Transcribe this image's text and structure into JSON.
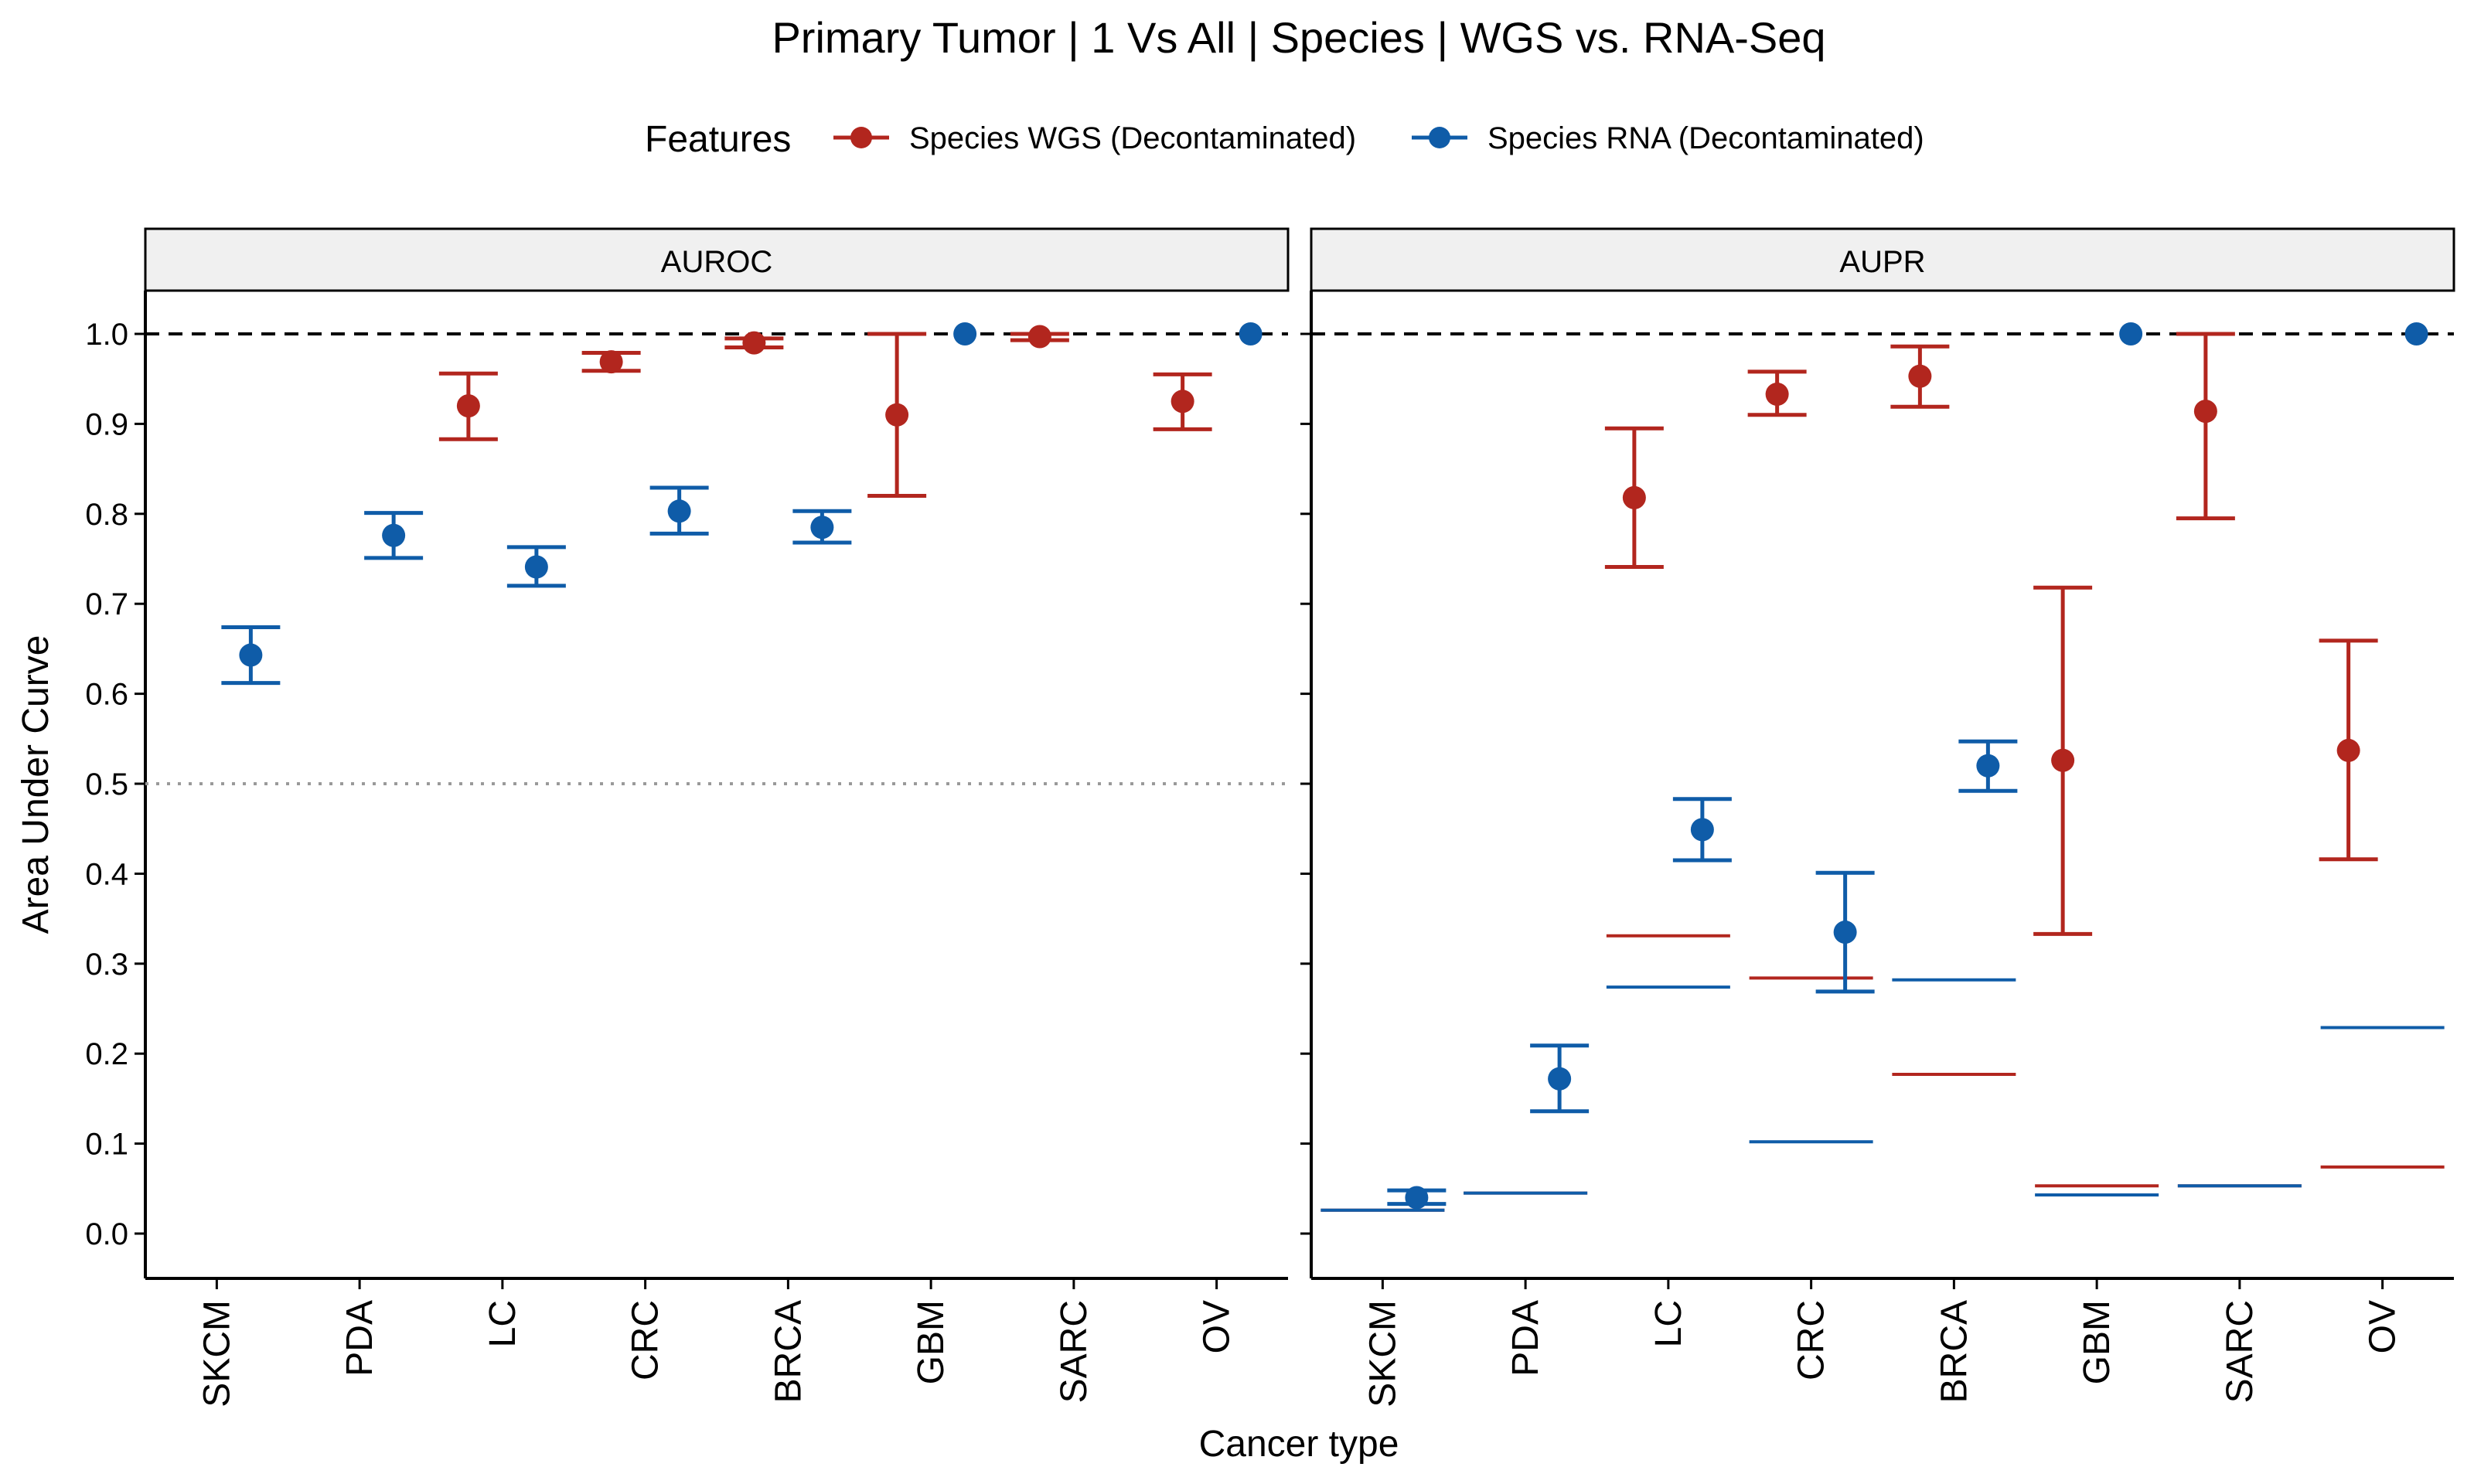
{
  "chart_data": {
    "type": "scatter",
    "title": "Primary Tumor | 1 Vs All | Species | WGS vs. RNA-Seq",
    "xlabel": "Cancer type",
    "ylabel": "Area Under Curve",
    "ylim": [
      -0.05,
      1.05
    ],
    "yticks": [
      "0.0",
      "0.1",
      "0.2",
      "0.3",
      "0.4",
      "0.5",
      "0.6",
      "0.7",
      "0.8",
      "0.9",
      "1.0"
    ],
    "categories": [
      "SKCM",
      "PDA",
      "LC",
      "CRC",
      "BRCA",
      "GBM",
      "SARC",
      "OV"
    ],
    "grid": false,
    "legend": {
      "title": "Features",
      "position": "top",
      "entries": [
        {
          "name": "Species WGS (Decontaminated)",
          "color": "#B2261E"
        },
        {
          "name": "Species RNA (Decontaminated)",
          "color": "#0F5CA8"
        }
      ]
    },
    "reference_lines": {
      "upper": 1.0,
      "chance_auroc": 0.5
    },
    "panels": [
      {
        "name": "AUROC",
        "series": [
          {
            "name": "Species WGS (Decontaminated)",
            "points": [
              {
                "category": "LC",
                "y": 0.92,
                "low": 0.883,
                "high": 0.956
              },
              {
                "category": "CRC",
                "y": 0.969,
                "low": 0.959,
                "high": 0.979
              },
              {
                "category": "BRCA",
                "y": 0.99,
                "low": 0.985,
                "high": 0.995
              },
              {
                "category": "GBM",
                "y": 0.91,
                "low": 0.82,
                "high": 1.0
              },
              {
                "category": "SARC",
                "y": 0.997,
                "low": 0.993,
                "high": 1.0
              },
              {
                "category": "OV",
                "y": 0.925,
                "low": 0.894,
                "high": 0.955
              }
            ]
          },
          {
            "name": "Species RNA (Decontaminated)",
            "points": [
              {
                "category": "SKCM",
                "y": 0.643,
                "low": 0.612,
                "high": 0.674
              },
              {
                "category": "PDA",
                "y": 0.776,
                "low": 0.751,
                "high": 0.801
              },
              {
                "category": "LC",
                "y": 0.741,
                "low": 0.72,
                "high": 0.763
              },
              {
                "category": "CRC",
                "y": 0.803,
                "low": 0.778,
                "high": 0.829
              },
              {
                "category": "BRCA",
                "y": 0.785,
                "low": 0.768,
                "high": 0.803
              },
              {
                "category": "GBM",
                "y": 1.0,
                "low": 1.0,
                "high": 1.0
              },
              {
                "category": "OV",
                "y": 1.0,
                "low": 1.0,
                "high": 1.0
              }
            ]
          }
        ]
      },
      {
        "name": "AUPR",
        "series": [
          {
            "name": "Species WGS (Decontaminated)",
            "points": [
              {
                "category": "LC",
                "y": 0.818,
                "low": 0.741,
                "high": 0.895
              },
              {
                "category": "CRC",
                "y": 0.933,
                "low": 0.91,
                "high": 0.958
              },
              {
                "category": "BRCA",
                "y": 0.953,
                "low": 0.919,
                "high": 0.986
              },
              {
                "category": "GBM",
                "y": 0.526,
                "low": 0.333,
                "high": 0.718
              },
              {
                "category": "SARC",
                "y": 0.914,
                "low": 0.795,
                "high": 1.0
              },
              {
                "category": "OV",
                "y": 0.537,
                "low": 0.416,
                "high": 0.659
              }
            ],
            "baselines": [
              {
                "category": "SKCM",
                "y": 0.026
              },
              {
                "category": "PDA",
                "y": 0.045
              },
              {
                "category": "LC",
                "y": 0.331
              },
              {
                "category": "CRC",
                "y": 0.284
              },
              {
                "category": "BRCA",
                "y": 0.177
              },
              {
                "category": "GBM",
                "y": 0.053
              },
              {
                "category": "SARC",
                "y": 0.053
              },
              {
                "category": "OV",
                "y": 0.074
              }
            ]
          },
          {
            "name": "Species RNA (Decontaminated)",
            "points": [
              {
                "category": "SKCM",
                "y": 0.04,
                "low": 0.033,
                "high": 0.048
              },
              {
                "category": "PDA",
                "y": 0.172,
                "low": 0.136,
                "high": 0.209
              },
              {
                "category": "LC",
                "y": 0.449,
                "low": 0.415,
                "high": 0.483
              },
              {
                "category": "CRC",
                "y": 0.335,
                "low": 0.269,
                "high": 0.401
              },
              {
                "category": "BRCA",
                "y": 0.52,
                "low": 0.492,
                "high": 0.547
              },
              {
                "category": "GBM",
                "y": 1.0,
                "low": 1.0,
                "high": 1.0
              },
              {
                "category": "OV",
                "y": 1.0,
                "low": 1.0,
                "high": 1.0
              }
            ],
            "baselines": [
              {
                "category": "SKCM",
                "y": 0.026
              },
              {
                "category": "PDA",
                "y": 0.045
              },
              {
                "category": "LC",
                "y": 0.274
              },
              {
                "category": "CRC",
                "y": 0.102
              },
              {
                "category": "BRCA",
                "y": 0.282
              },
              {
                "category": "GBM",
                "y": 0.043
              },
              {
                "category": "SARC",
                "y": 0.053
              },
              {
                "category": "OV",
                "y": 0.229
              }
            ]
          }
        ]
      }
    ]
  }
}
